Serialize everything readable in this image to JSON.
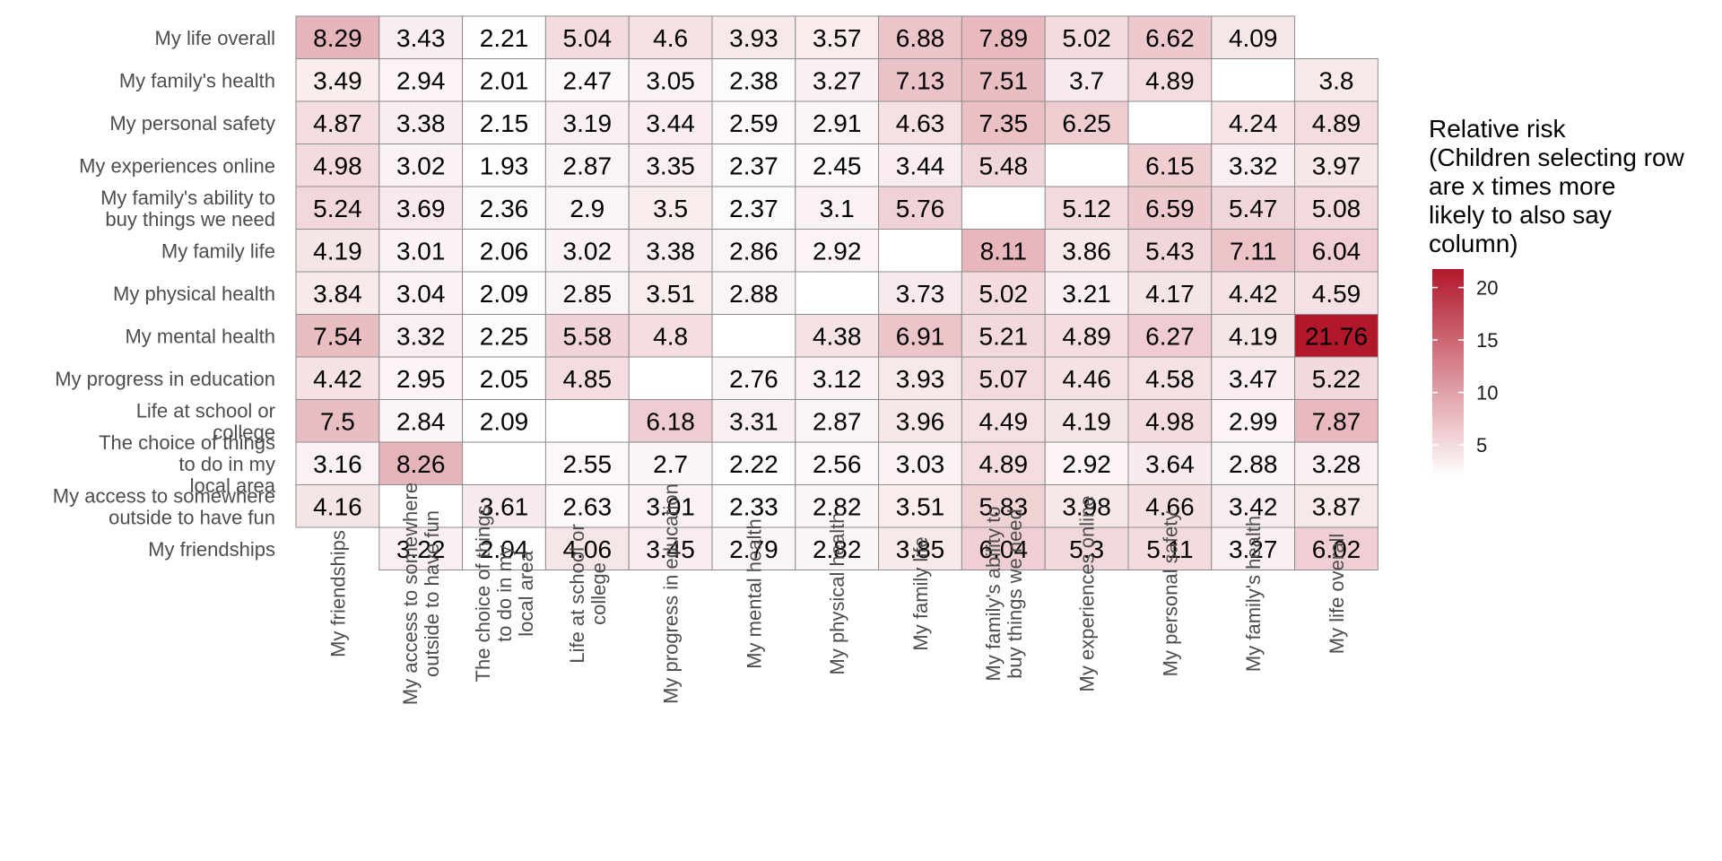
{
  "chart_data": {
    "type": "heatmap",
    "legend": {
      "title_lines": [
        "Relative risk",
        "(Children selecting row",
        "are x times more",
        "likely to also say",
        "column)"
      ],
      "ticks": [
        5,
        10,
        15,
        20
      ],
      "range": [
        1.93,
        21.76
      ],
      "position": "right",
      "colors": {
        "low": "#ffffff",
        "high": "#b2182b"
      }
    },
    "columns": [
      "My friendships",
      "My access to somewhere outside to have fun",
      "The choice of things to do in my local area",
      "Life at school or college",
      "My progress in education",
      "My mental health",
      "My physical health",
      "My family life",
      "My family's ability to buy things we need",
      "My experiences online",
      "My personal safety",
      "My family's health",
      "My life overall"
    ],
    "column_label_lines": [
      [
        "My friendships"
      ],
      [
        "My access to somewhere",
        "outside to have fun"
      ],
      [
        "The choice of things",
        "to do in my",
        "local area"
      ],
      [
        "Life at school or",
        "college"
      ],
      [
        "My progress in education"
      ],
      [
        "My mental health"
      ],
      [
        "My physical health"
      ],
      [
        "My family life"
      ],
      [
        "My family's ability to",
        "buy things we need"
      ],
      [
        "My experiences online"
      ],
      [
        "My personal safety"
      ],
      [
        "My family's health"
      ],
      [
        "My life overall"
      ]
    ],
    "rows": [
      "My life overall",
      "My family's health",
      "My personal safety",
      "My experiences online",
      "My family's ability to buy things we need",
      "My family life",
      "My physical health",
      "My mental health",
      "My progress in education",
      "Life at school or college",
      "The choice of things to do in my local area",
      "My access to somewhere outside to have fun",
      "My friendships"
    ],
    "row_label_lines": [
      [
        "My life overall"
      ],
      [
        "My family's health"
      ],
      [
        "My personal safety"
      ],
      [
        "My experiences online"
      ],
      [
        "My family's ability to",
        "buy things we need"
      ],
      [
        "My family life"
      ],
      [
        "My physical health"
      ],
      [
        "My mental health"
      ],
      [
        "My progress in education"
      ],
      [
        "Life at school or",
        "college"
      ],
      [
        "The choice of things",
        "to do in my",
        "local area"
      ],
      [
        "My access to somewhere",
        "outside to have fun"
      ],
      [
        "My friendships"
      ]
    ],
    "values": [
      [
        8.29,
        3.43,
        2.21,
        5.04,
        4.6,
        3.93,
        3.57,
        6.88,
        7.89,
        5.02,
        6.62,
        4.09,
        null
      ],
      [
        3.49,
        2.94,
        2.01,
        2.47,
        3.05,
        2.38,
        3.27,
        7.13,
        7.51,
        3.7,
        4.89,
        null,
        3.8
      ],
      [
        4.87,
        3.38,
        2.15,
        3.19,
        3.44,
        2.59,
        2.91,
        4.63,
        7.35,
        6.25,
        null,
        4.24,
        4.89
      ],
      [
        4.98,
        3.02,
        1.93,
        2.87,
        3.35,
        2.37,
        2.45,
        3.44,
        5.48,
        null,
        6.15,
        3.32,
        3.97
      ],
      [
        5.24,
        3.69,
        2.36,
        2.9,
        3.5,
        2.37,
        3.1,
        5.76,
        null,
        5.12,
        6.59,
        5.47,
        5.08
      ],
      [
        4.19,
        3.01,
        2.06,
        3.02,
        3.38,
        2.86,
        2.92,
        null,
        8.11,
        3.86,
        5.43,
        7.11,
        6.04
      ],
      [
        3.84,
        3.04,
        2.09,
        2.85,
        3.51,
        2.88,
        null,
        3.73,
        5.02,
        3.21,
        4.17,
        4.42,
        4.59
      ],
      [
        7.54,
        3.32,
        2.25,
        5.58,
        4.8,
        null,
        4.38,
        6.91,
        5.21,
        4.89,
        6.27,
        4.19,
        21.76
      ],
      [
        4.42,
        2.95,
        2.05,
        4.85,
        null,
        2.76,
        3.12,
        3.93,
        5.07,
        4.46,
        4.58,
        3.47,
        5.22
      ],
      [
        7.5,
        2.84,
        2.09,
        null,
        6.18,
        3.31,
        2.87,
        3.96,
        4.49,
        4.19,
        4.98,
        2.99,
        7.87
      ],
      [
        3.16,
        8.26,
        null,
        2.55,
        2.7,
        2.22,
        2.56,
        3.03,
        4.89,
        2.92,
        3.64,
        2.88,
        3.28
      ],
      [
        4.16,
        null,
        3.61,
        2.63,
        3.01,
        2.33,
        2.82,
        3.51,
        5.83,
        3.98,
        4.66,
        3.42,
        3.87
      ],
      [
        null,
        3.22,
        2.04,
        4.06,
        3.45,
        2.79,
        2.82,
        3.85,
        6.04,
        5.3,
        5.11,
        3.27,
        6.02
      ]
    ]
  }
}
